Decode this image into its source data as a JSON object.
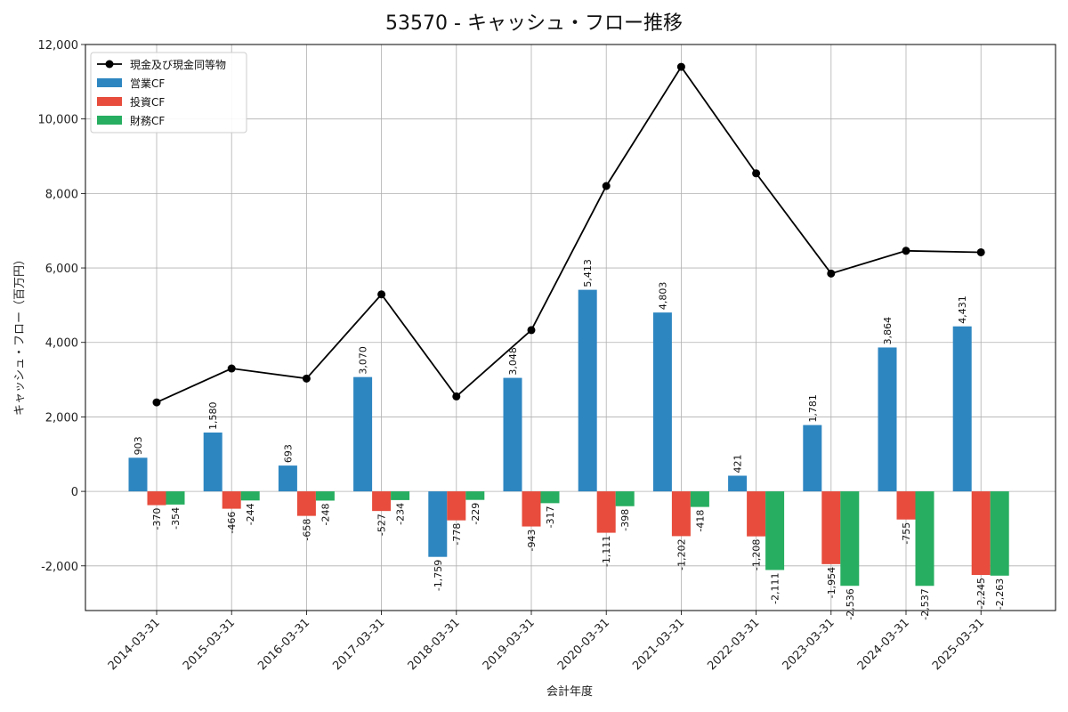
{
  "title": "53570 - キャッシュ・フロー推移",
  "chart_data": {
    "type": "bar",
    "title": "53570 - キャッシュ・フロー推移",
    "xlabel": "会計年度",
    "ylabel": "キャッシュ・フロー（百万円）",
    "ylim": [
      -3200,
      12000
    ],
    "yticks": [
      -2000,
      0,
      2000,
      4000,
      6000,
      8000,
      10000,
      12000
    ],
    "ytick_labels": [
      "-2,000",
      "0",
      "2,000",
      "4,000",
      "6,000",
      "8,000",
      "10,000",
      "12,000"
    ],
    "grid": true,
    "legend_position": "top-left",
    "categories": [
      "2014-03-31",
      "2015-03-31",
      "2016-03-31",
      "2017-03-31",
      "2018-03-31",
      "2019-03-31",
      "2020-03-31",
      "2021-03-31",
      "2022-03-31",
      "2023-03-31",
      "2024-03-31",
      "2025-03-31"
    ],
    "series": [
      {
        "name": "営業CF",
        "kind": "bar",
        "color": "#2e86c1",
        "values": [
          903,
          1580,
          693,
          3070,
          -1759,
          3048,
          5413,
          4803,
          421,
          1781,
          3864,
          4431
        ],
        "labels": [
          "903",
          "1,580",
          "693",
          "3,070",
          "-1,759",
          "3,048",
          "5,413",
          "4,803",
          "421",
          "1,781",
          "3,864",
          "4,431"
        ]
      },
      {
        "name": "投資CF",
        "kind": "bar",
        "color": "#e74c3c",
        "values": [
          -370,
          -466,
          -658,
          -527,
          -778,
          -943,
          -1111,
          -1202,
          -1208,
          -1954,
          -755,
          -2245
        ],
        "labels": [
          "-370",
          "-466",
          "-658",
          "-527",
          "-778",
          "-943",
          "-1,111",
          "-1,202",
          "-1,208",
          "-1,954",
          "-755",
          "-2,245"
        ]
      },
      {
        "name": "財務CF",
        "kind": "bar",
        "color": "#27ae60",
        "values": [
          -354,
          -244,
          -248,
          -234,
          -229,
          -317,
          -398,
          -418,
          -2111,
          -2536,
          -2537,
          -2263
        ],
        "labels": [
          "-354",
          "-244",
          "-248",
          "-234",
          "-229",
          "-317",
          "-398",
          "-418",
          "-2,111",
          "-2,536",
          "-2,537",
          "-2,263"
        ]
      },
      {
        "name": "現金及び現金同等物",
        "kind": "line",
        "color": "#000000",
        "values": [
          2390,
          3300,
          3030,
          5290,
          2550,
          4330,
          8200,
          11400,
          8540,
          5850,
          6460,
          6420
        ]
      }
    ]
  }
}
